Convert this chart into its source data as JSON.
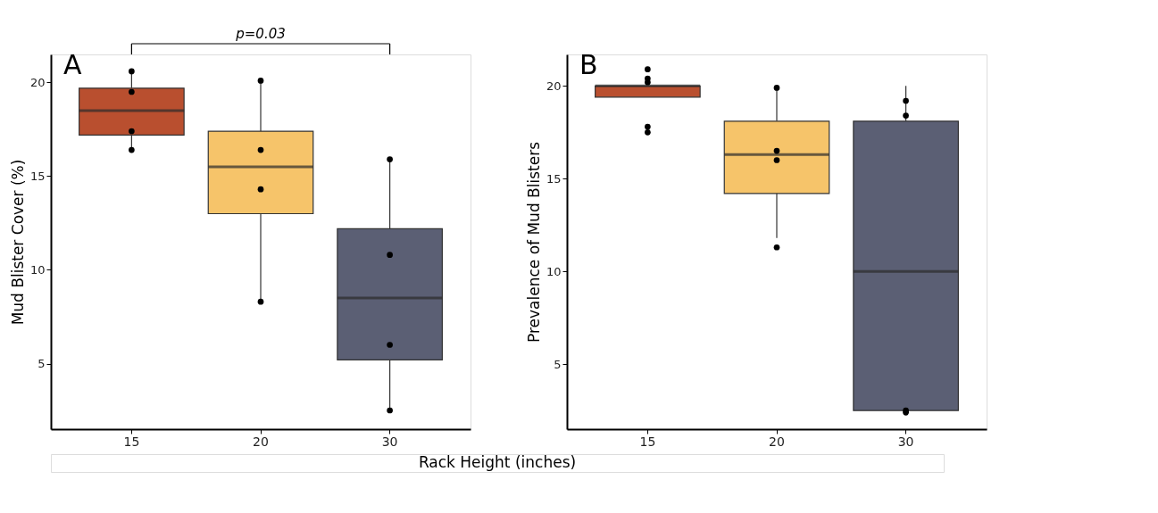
{
  "chart_data": [
    {
      "type": "box",
      "title": "A",
      "xlabel": "Rack Height (inches)",
      "ylabel": "Mud Blister Cover (%)",
      "categories": [
        "15",
        "20",
        "30"
      ],
      "colors": [
        "#b94f2f",
        "#f6c46a",
        "#5b5f74"
      ],
      "boxes": [
        {
          "low": 16.5,
          "q1": 17.2,
          "median": 18.5,
          "q3": 19.7,
          "high": 20.5
        },
        {
          "low": 8.4,
          "q1": 13.0,
          "median": 15.5,
          "q3": 17.4,
          "high": 20.0
        },
        {
          "low": 2.6,
          "q1": 5.2,
          "median": 8.5,
          "q3": 12.2,
          "high": 16.0
        }
      ],
      "series": [
        {
          "type": "scatter",
          "color": "#000000",
          "x": [
            "15",
            "15",
            "15",
            "15",
            "20",
            "20",
            "20",
            "20",
            "30",
            "30",
            "30",
            "30"
          ],
          "values": [
            20.6,
            19.5,
            17.4,
            16.4,
            20.1,
            16.4,
            14.3,
            8.3,
            15.9,
            10.8,
            6.0,
            2.5
          ]
        }
      ],
      "ylim": [
        1.5,
        21.5
      ],
      "yticks": [
        5,
        10,
        15,
        20
      ],
      "grid": false,
      "annotations": [
        "p=0.03"
      ]
    },
    {
      "type": "box",
      "title": "B",
      "ylabel": "Prevalence of Mud Blisters",
      "categories": [
        "15",
        "20",
        "30"
      ],
      "colors": [
        "#b94f2f",
        "#f6c46a",
        "#5b5f74"
      ],
      "boxes": [
        {
          "low": 19.4,
          "q1": 19.4,
          "median": 20.0,
          "q3": 20.0,
          "high": 20.0
        },
        {
          "low": 11.8,
          "q1": 14.2,
          "median": 16.3,
          "q3": 18.1,
          "high": 20.0
        },
        {
          "low": 2.5,
          "q1": 2.5,
          "median": 10.0,
          "q3": 18.1,
          "high": 20.0
        }
      ],
      "series": [
        {
          "type": "scatter",
          "color": "#000000",
          "x": [
            "15",
            "15",
            "15",
            "15",
            "15",
            "20",
            "20",
            "20",
            "20",
            "30",
            "30",
            "30",
            "30"
          ],
          "values": [
            20.9,
            20.2,
            20.4,
            17.8,
            17.5,
            19.9,
            16.5,
            16.0,
            11.3,
            19.2,
            18.4,
            2.4,
            2.5
          ]
        }
      ],
      "ylim": [
        1.5,
        21.7
      ],
      "yticks": [
        5,
        10,
        15,
        20
      ],
      "grid": false
    }
  ]
}
